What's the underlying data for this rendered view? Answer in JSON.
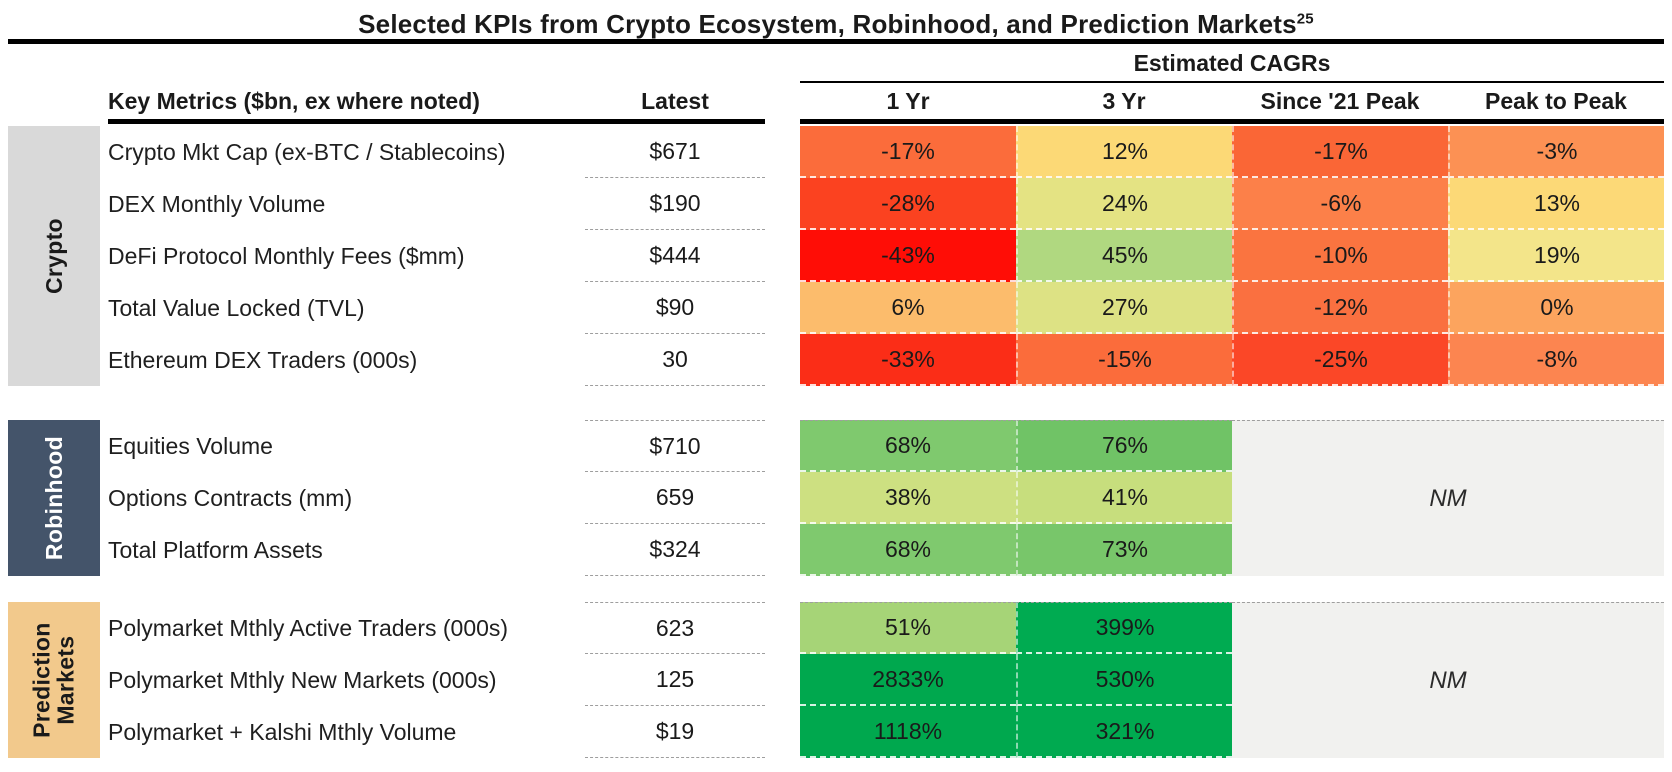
{
  "title": {
    "text": "Selected KPIs from Crypto Ecosystem, Robinhood, and Prediction Markets",
    "superscript": "25"
  },
  "header": {
    "cagr_group_label": "Estimated CAGRs",
    "key_metrics_label": "Key Metrics ($bn, ex where noted)",
    "latest_label": "Latest",
    "cagr_columns": {
      "c1": "1 Yr",
      "c2": "3 Yr",
      "c3": "Since '21 Peak",
      "c4": "Peak to Peak"
    }
  },
  "colors": {
    "rule": "#000000",
    "dashed_line": "#9e9e9e",
    "crypto_sidebar_bg": "#d9d9d9",
    "robinhood_sidebar_bg": "#44546a",
    "robinhood_sidebar_text": "#ffffff",
    "prediction_sidebar_bg": "#f2c98c",
    "nm_bg": "#f1f1ef"
  },
  "chart_data": {
    "type": "heatmap",
    "title": "Selected KPIs from Crypto Ecosystem, Robinhood, and Prediction Markets",
    "columns": [
      "Latest",
      "1 Yr",
      "3 Yr",
      "Since '21 Peak",
      "Peak to Peak"
    ],
    "sections": [
      {
        "name": "Crypto",
        "rows": [
          {
            "metric": "Crypto Mkt Cap (ex-BTC / Stablecoins)",
            "latest": "$671",
            "cagrs_pct": [
              -17,
              12,
              -17,
              -3
            ]
          },
          {
            "metric": "DEX Monthly Volume",
            "latest": "$190",
            "cagrs_pct": [
              -28,
              24,
              -6,
              13
            ]
          },
          {
            "metric": "DeFi Protocol Monthly Fees ($mm)",
            "latest": "$444",
            "cagrs_pct": [
              -43,
              45,
              -10,
              19
            ]
          },
          {
            "metric": "Total Value Locked (TVL)",
            "latest": "$90",
            "cagrs_pct": [
              6,
              27,
              -12,
              0
            ]
          },
          {
            "metric": "Ethereum DEX Traders (000s)",
            "latest": "30",
            "cagrs_pct": [
              -33,
              -15,
              -25,
              -8
            ]
          }
        ]
      },
      {
        "name": "Robinhood",
        "rows": [
          {
            "metric": "Equities Volume",
            "latest": "$710",
            "cagrs_pct": [
              68,
              76,
              null,
              null
            ]
          },
          {
            "metric": "Options Contracts (mm)",
            "latest": "659",
            "cagrs_pct": [
              38,
              41,
              null,
              null
            ]
          },
          {
            "metric": "Total Platform Assets",
            "latest": "$324",
            "cagrs_pct": [
              68,
              73,
              null,
              null
            ]
          }
        ],
        "merged_note": "NM"
      },
      {
        "name": "Prediction Markets",
        "rows": [
          {
            "metric": "Polymarket Mthly Active Traders (000s)",
            "latest": "623",
            "cagrs_pct": [
              51,
              399,
              null,
              null
            ]
          },
          {
            "metric": "Polymarket Mthly New Markets (000s)",
            "latest": "125",
            "cagrs_pct": [
              2833,
              530,
              null,
              null
            ]
          },
          {
            "metric": "Polymarket + Kalshi Mthly Volume",
            "latest": "$19",
            "cagrs_pct": [
              1118,
              321,
              null,
              null
            ]
          }
        ],
        "merged_note": "NM"
      }
    ]
  },
  "sections": [
    {
      "label": "Crypto",
      "rows": [
        {
          "metric": "Crypto Mkt Cap (ex-BTC / Stablecoins)",
          "latest": "$671",
          "cagrs": [
            {
              "v": "-17%",
              "bg": "#fb6c3b"
            },
            {
              "v": "12%",
              "bg": "#fcd976"
            },
            {
              "v": "-17%",
              "bg": "#fa6636"
            },
            {
              "v": "-3%",
              "bg": "#fc9154"
            }
          ]
        },
        {
          "metric": "DEX Monthly Volume",
          "latest": "$190",
          "cagrs": [
            {
              "v": "-28%",
              "bg": "#fb4220"
            },
            {
              "v": "24%",
              "bg": "#e4e383"
            },
            {
              "v": "-6%",
              "bg": "#fc8049"
            },
            {
              "v": "13%",
              "bg": "#fcd977"
            }
          ]
        },
        {
          "metric": "DeFi Protocol Monthly Fees ($mm)",
          "latest": "$444",
          "cagrs": [
            {
              "v": "-43%",
              "bg": "#ff0d06"
            },
            {
              "v": "45%",
              "bg": "#b0d880"
            },
            {
              "v": "-10%",
              "bg": "#fa7440"
            },
            {
              "v": "19%",
              "bg": "#f3e58a"
            }
          ]
        },
        {
          "metric": "Total Value Locked (TVL)",
          "latest": "$90",
          "cagrs": [
            {
              "v": "6%",
              "bg": "#fcbc6c"
            },
            {
              "v": "27%",
              "bg": "#dde284"
            },
            {
              "v": "-12%",
              "bg": "#fa7040"
            },
            {
              "v": "0%",
              "bg": "#fca45e"
            }
          ]
        },
        {
          "metric": "Ethereum DEX Traders (000s)",
          "latest": "30",
          "cagrs": [
            {
              "v": "-33%",
              "bg": "#fb2d17"
            },
            {
              "v": "-15%",
              "bg": "#fb6c3b"
            },
            {
              "v": "-25%",
              "bg": "#fb4727"
            },
            {
              "v": "-8%",
              "bg": "#fc8550"
            }
          ]
        }
      ]
    },
    {
      "label": "Robinhood",
      "nm": {
        "label": "NM"
      },
      "rows": [
        {
          "metric": "Equities Volume",
          "latest": "$710",
          "cagrs": [
            {
              "v": "68%",
              "bg": "#7fc96e"
            },
            {
              "v": "76%",
              "bg": "#70c366"
            }
          ]
        },
        {
          "metric": "Options Contracts (mm)",
          "latest": "659",
          "cagrs": [
            {
              "v": "38%",
              "bg": "#cde081"
            },
            {
              "v": "41%",
              "bg": "#c7de7d"
            }
          ]
        },
        {
          "metric": "Total Platform Assets",
          "latest": "$324",
          "cagrs": [
            {
              "v": "68%",
              "bg": "#7fc96e"
            },
            {
              "v": "73%",
              "bg": "#78c66a"
            }
          ]
        }
      ]
    },
    {
      "label": "Prediction Markets",
      "nm": {
        "label": "NM"
      },
      "rows": [
        {
          "metric": "Polymarket Mthly Active Traders (000s)",
          "latest": "623",
          "cagrs": [
            {
              "v": "51%",
              "bg": "#a6d477"
            },
            {
              "v": "399%",
              "bg": "#00ab51"
            }
          ]
        },
        {
          "metric": "Polymarket Mthly New Markets (000s)",
          "latest": "125",
          "cagrs": [
            {
              "v": "2833%",
              "bg": "#00a84e"
            },
            {
              "v": "530%",
              "bg": "#00aa50"
            }
          ]
        },
        {
          "metric": "Polymarket + Kalshi Mthly Volume",
          "latest": "$19",
          "cagrs": [
            {
              "v": "1118%",
              "bg": "#00a84e"
            },
            {
              "v": "321%",
              "bg": "#00aa50"
            }
          ]
        }
      ]
    }
  ]
}
